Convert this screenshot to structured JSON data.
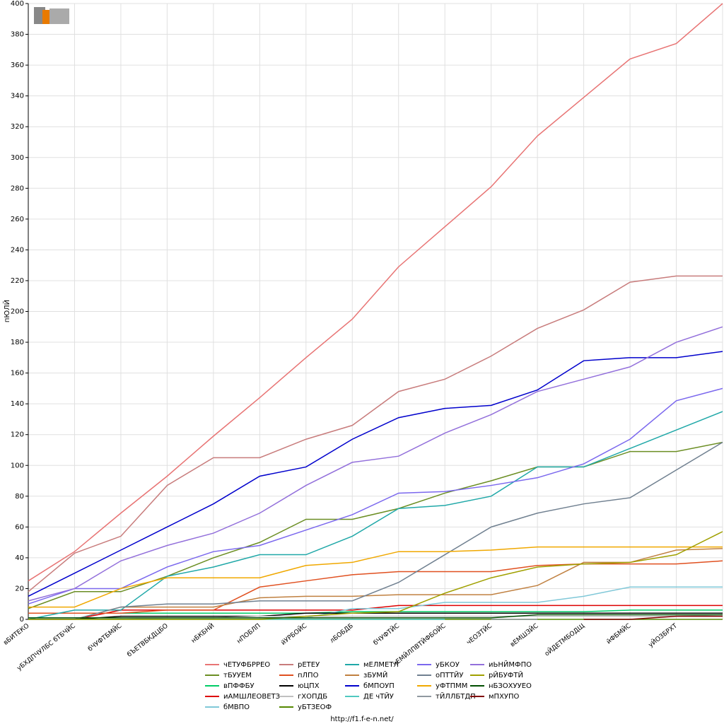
{
  "chart_data": {
    "type": "line",
    "y_label": "пЮЛЙ",
    "footer": "http://f1.f-e-n.net/",
    "categories": [
      "вБИТЕКО",
      "уБХДПЧУЛБС бТБЧЙС",
      "бЧУФТБМЙС",
      "бЪЕТВБКДЦБО",
      "нБКБНЙ",
      "нПОБЛП",
      "йУРБОЙС",
      "лБОБДБ",
      "бЧУФТЙС",
      "чЕМЙЛПВТЙФБОЙС",
      "чЕОЗТЙС",
      "вЕМШЗЙС",
      "оЙДЕТМБОДЩ",
      "йФБМЙС",
      "уЙОЗБРХТ",
      null
    ],
    "ylim": [
      0,
      400
    ],
    "yticks": [
      0,
      20,
      40,
      60,
      80,
      100,
      120,
      140,
      160,
      180,
      200,
      220,
      240,
      260,
      280,
      300,
      320,
      340,
      360,
      380,
      400
    ],
    "grid": true,
    "series": [
      {
        "name": "чЕТУФБРРЕО",
        "color": "#e87474",
        "values": [
          25,
          44,
          69,
          93,
          119,
          144,
          170,
          195,
          229,
          255,
          281,
          314,
          339,
          364,
          374,
          400
        ]
      },
      {
        "name": "тБУУЕМ",
        "color": "#6b8e23",
        "values": [
          7,
          18,
          18,
          28,
          40,
          50,
          65,
          65,
          72,
          82,
          90,
          99,
          99,
          109,
          109,
          115
        ]
      },
      {
        "name": "вПФФБУ",
        "color": "#00cc66",
        "values": [
          4,
          4,
          4,
          4,
          4,
          4,
          4,
          5,
          5,
          5,
          5,
          5,
          5,
          6,
          6,
          6
        ]
      },
      {
        "name": "иАМШЛЕОВЕТЗ",
        "color": "#dd0000",
        "values": [
          0,
          0,
          6,
          6,
          6,
          6,
          6,
          6,
          9,
          9,
          9,
          9,
          9,
          9,
          9,
          9
        ]
      },
      {
        "name": "бМВПО",
        "color": "#80c8d8",
        "values": [
          1,
          1,
          1,
          1,
          1,
          1,
          1,
          7,
          7,
          11,
          11,
          11,
          15,
          21,
          21,
          21
        ]
      },
      {
        "name": "рЕТЕУ",
        "color": "#c87c7c",
        "values": [
          18,
          43,
          54,
          87,
          105,
          105,
          117,
          126,
          148,
          156,
          171,
          189,
          201,
          219,
          223,
          223
        ]
      },
      {
        "name": "пЛПО",
        "color": "#e05020",
        "values": [
          4,
          4,
          4,
          6,
          6,
          21,
          25,
          29,
          31,
          31,
          31,
          35,
          36,
          36,
          36,
          38
        ]
      },
      {
        "name": "юЦПХ",
        "color": "#000000",
        "values": [
          0,
          0,
          2,
          2,
          2,
          2,
          4,
          4,
          4,
          4,
          4,
          4,
          4,
          4,
          4,
          4
        ]
      },
      {
        "name": "гХОПДБ",
        "color": "#c0c0c0",
        "values": [
          0,
          0,
          0,
          1,
          1,
          2,
          2,
          2,
          2,
          2,
          2,
          2,
          2,
          2,
          2,
          3
        ]
      },
      {
        "name": "уБТЗЕОФ",
        "color": "#558800",
        "values": [
          0,
          0,
          0,
          0,
          0,
          0,
          0,
          0,
          0,
          0,
          0,
          0,
          0,
          0,
          0,
          0
        ]
      },
      {
        "name": "мЕЛМЕТЛ",
        "color": "#20a8a8",
        "values": [
          0,
          6,
          6,
          28,
          34,
          42,
          42,
          54,
          72,
          74,
          80,
          99,
          99,
          111,
          123,
          135
        ]
      },
      {
        "name": "зБУМЙ",
        "color": "#c08040",
        "values": [
          0,
          0,
          8,
          8,
          8,
          14,
          15,
          15,
          16,
          16,
          16,
          22,
          37,
          37,
          45,
          46
        ]
      },
      {
        "name": "бМПОУП",
        "color": "#0000cc",
        "values": [
          15,
          30,
          45,
          60,
          75,
          93,
          99,
          117,
          131,
          137,
          139,
          149,
          168,
          170,
          170,
          174
        ]
      },
      {
        "name": "ДЕ чТЙУ",
        "color": "#50c8c0",
        "values": [
          0,
          0,
          0,
          0,
          0,
          0,
          0,
          0,
          0,
          0,
          null,
          null,
          null,
          null,
          null,
          null
        ]
      },
      {
        "name": "уБКОУ",
        "color": "#7b68ee",
        "values": [
          10,
          20,
          20,
          34,
          44,
          48,
          58,
          68,
          82,
          83,
          87,
          92,
          101,
          117,
          142,
          150
        ]
      },
      {
        "name": "оПТТЙУ",
        "color": "#708090",
        "values": [
          0,
          0,
          8,
          10,
          10,
          12,
          12,
          12,
          24,
          42,
          60,
          69,
          75,
          79,
          97,
          115
        ]
      },
      {
        "name": "уФТПММ",
        "color": "#f0a800",
        "values": [
          8,
          8,
          20,
          27,
          27,
          27,
          35,
          37,
          44,
          44,
          45,
          47,
          47,
          47,
          47,
          47
        ]
      },
      {
        "name": "тЙЛЛБТДП",
        "color": "#9098a0",
        "values": [
          null,
          null,
          null,
          null,
          null,
          null,
          null,
          null,
          null,
          null,
          0,
          0,
          null,
          null,
          null,
          0
        ]
      },
      {
        "name": "иЬНЙМФПО",
        "color": "#9370db",
        "values": [
          12,
          20,
          38,
          48,
          56,
          69,
          87,
          102,
          106,
          121,
          133,
          148,
          156,
          164,
          180,
          190
        ]
      },
      {
        "name": "рЙБУФТЙ",
        "color": "#a0a000",
        "values": [
          0,
          0,
          0,
          0,
          0,
          0,
          2,
          4,
          5,
          17,
          27,
          34,
          36,
          37,
          42,
          57
        ]
      },
      {
        "name": "нБЗОХУУЕО",
        "color": "#004d00",
        "values": [
          1,
          1,
          1,
          1,
          1,
          1,
          1,
          1,
          1,
          1,
          1,
          3,
          3,
          3,
          3,
          3
        ]
      },
      {
        "name": "мПХУПО",
        "color": "#800000",
        "values": [
          null,
          null,
          null,
          null,
          null,
          null,
          null,
          null,
          null,
          null,
          null,
          null,
          0,
          0,
          2,
          2
        ]
      }
    ]
  }
}
